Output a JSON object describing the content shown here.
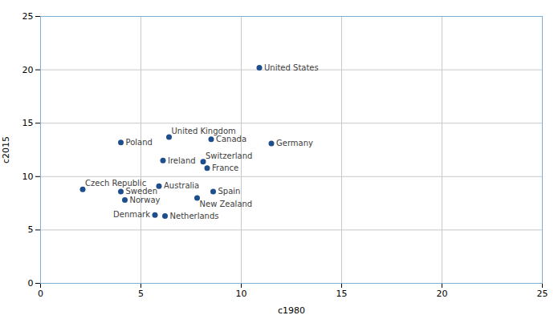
{
  "chart_data": {
    "type": "scatter",
    "xlabel": "c1980",
    "ylabel": "c2015",
    "labels": [
      "United States",
      "Germany",
      "Canada",
      "United Kingdom",
      "Poland",
      "Ireland",
      "Switzerland",
      "France",
      "Australia",
      "Spain",
      "Czech Republic",
      "Sweden",
      "New Zealand",
      "Norway",
      "Denmark",
      "Netherlands"
    ],
    "x": [
      10.9,
      11.5,
      8.5,
      6.4,
      4.0,
      6.1,
      8.1,
      8.3,
      5.9,
      8.6,
      2.1,
      4.0,
      7.8,
      4.2,
      5.7,
      6.2
    ],
    "values": [
      20.2,
      13.1,
      13.5,
      13.7,
      13.2,
      11.5,
      11.4,
      10.8,
      9.1,
      8.6,
      8.8,
      8.6,
      8.0,
      7.8,
      6.4,
      6.3
    ],
    "color": "#1f4e8c",
    "xlim": [
      0,
      25
    ],
    "ylim": [
      0,
      25
    ],
    "xticks": [
      0,
      5,
      10,
      15,
      20,
      25
    ],
    "yticks": [
      0,
      5,
      10,
      15,
      20,
      25
    ],
    "grid": true
  }
}
